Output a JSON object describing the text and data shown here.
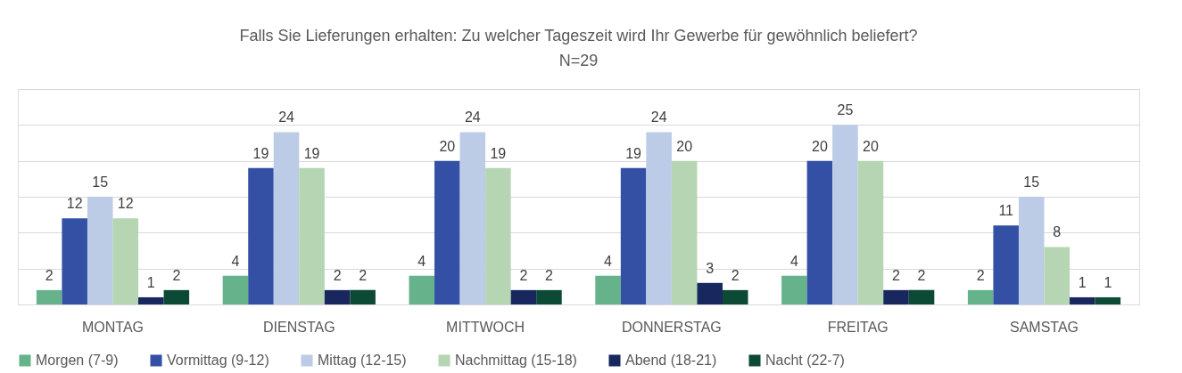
{
  "chart_data": {
    "type": "bar",
    "title": "Falls Sie Lieferungen erhalten: Zu welcher Tageszeit wird Ihr Gewerbe für gewöhnlich beliefert?",
    "subtitle": "N=29",
    "categories": [
      "MONTAG",
      "DIENSTAG",
      "MITTWOCH",
      "DONNERSTAG",
      "FREITAG",
      "SAMSTAG"
    ],
    "series": [
      {
        "name": "Morgen (7-9)",
        "color": "#66b38b",
        "values": [
          2,
          4,
          4,
          4,
          4,
          2
        ]
      },
      {
        "name": "Vormittag (9-12)",
        "color": "#3450a5",
        "values": [
          12,
          19,
          20,
          19,
          20,
          11
        ]
      },
      {
        "name": "Mittag (12-15)",
        "color": "#bccbe6",
        "values": [
          15,
          24,
          24,
          24,
          25,
          15
        ]
      },
      {
        "name": "Nachmittag (15-18)",
        "color": "#b5d5b3",
        "values": [
          12,
          19,
          19,
          20,
          20,
          8
        ]
      },
      {
        "name": "Abend (18-21)",
        "color": "#18285e",
        "values": [
          1,
          2,
          2,
          3,
          2,
          1
        ]
      },
      {
        "name": "Nacht (22-7)",
        "color": "#0d4a35",
        "values": [
          2,
          2,
          2,
          2,
          2,
          1
        ]
      }
    ],
    "ylim": [
      0,
      30
    ],
    "yticks": [
      {
        "value": 0,
        "label": null
      },
      {
        "value": 5,
        "label": null
      },
      {
        "value": 10,
        "label": null
      },
      {
        "value": 15,
        "label": null
      },
      {
        "value": 20,
        "label": null
      },
      {
        "value": 25,
        "label": null
      },
      {
        "value": 30,
        "label": null
      }
    ],
    "grid": "y",
    "tick_labels": "x",
    "legend": "bottom",
    "data_labels": true
  }
}
